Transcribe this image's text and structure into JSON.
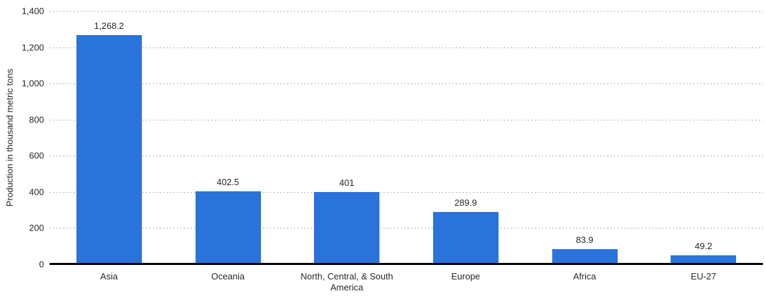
{
  "chart_data": {
    "type": "bar",
    "categories": [
      "Asia",
      "Oceania",
      "North, Central, & South America",
      "Europe",
      "Africa",
      "EU-27"
    ],
    "values": [
      1268.2,
      402.5,
      401,
      289.9,
      83.9,
      49.2
    ],
    "value_labels": [
      "1,268.2",
      "402.5",
      "401",
      "289.9",
      "83.9",
      "49.2"
    ],
    "title": "",
    "xlabel": "",
    "ylabel": "Production in thousand metric tons",
    "ylim": [
      0,
      1400
    ],
    "ytick_step": 200,
    "ytick_labels": [
      "0",
      "200",
      "400",
      "600",
      "800",
      "1,000",
      "1,200",
      "1,400"
    ],
    "grid": "horizontal-dotted",
    "legend_position": "none",
    "colors": {
      "bar": "#2a73db",
      "gridline": "#9b9b9b",
      "axis_line": "#000000",
      "text": "#262626"
    }
  }
}
